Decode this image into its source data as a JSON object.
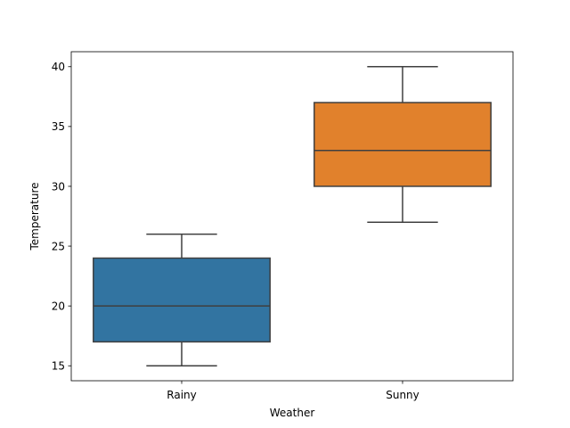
{
  "chart_data": {
    "type": "box",
    "xlabel": "Weather",
    "ylabel": "Temperature",
    "categories": [
      "Rainy",
      "Sunny"
    ],
    "ylim": [
      13.75,
      41.25
    ],
    "yticks": [
      15,
      20,
      25,
      30,
      35,
      40
    ],
    "ytick_labels": [
      "15",
      "20",
      "25",
      "30",
      "35",
      "40"
    ],
    "boxes": [
      {
        "category": "Rainy",
        "whisker_low": 15,
        "q1": 17,
        "median": 20,
        "q3": 24,
        "whisker_high": 26,
        "color": "#3274a1"
      },
      {
        "category": "Sunny",
        "whisker_low": 27,
        "q1": 30,
        "median": 33,
        "q3": 37,
        "whisker_high": 40,
        "color": "#e1812c"
      }
    ],
    "grid": false,
    "line_color": "#3f3f3f"
  }
}
